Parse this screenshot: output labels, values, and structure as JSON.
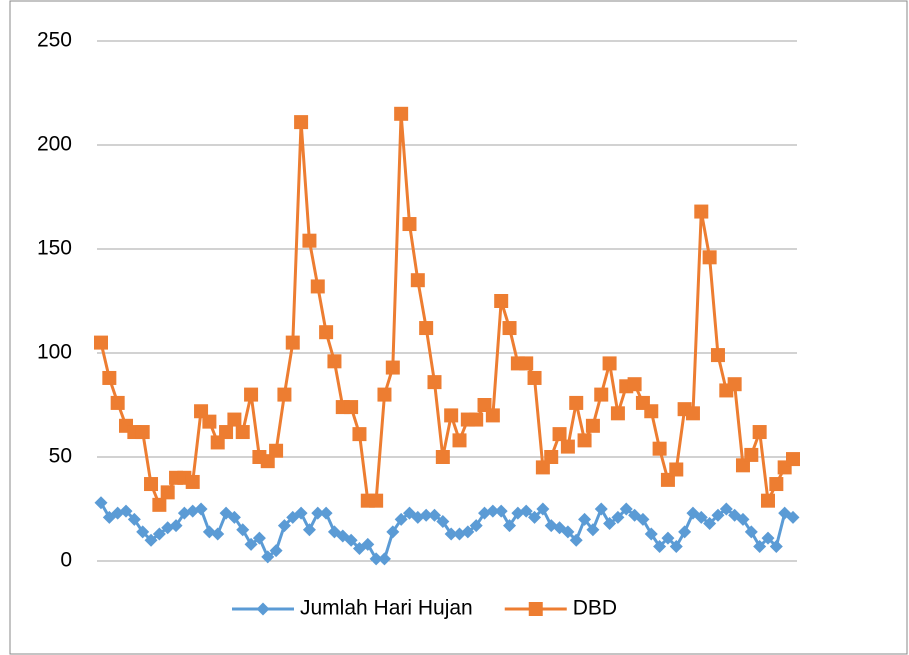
{
  "chart_data": {
    "type": "line",
    "series": [
      {
        "name": "Jumlah Hari Hujan",
        "color": "#5b9bd5",
        "marker": "diamond",
        "values": [
          28,
          21,
          23,
          24,
          20,
          14,
          10,
          13,
          16,
          17,
          23,
          24,
          25,
          14,
          13,
          23,
          21,
          15,
          8,
          11,
          2,
          5,
          17,
          21,
          23,
          15,
          23,
          23,
          14,
          12,
          10,
          6,
          8,
          1,
          1,
          14,
          20,
          23,
          21,
          22,
          22,
          19,
          13,
          13,
          14,
          17,
          23,
          24,
          24,
          17,
          23,
          24,
          21,
          25,
          17,
          16,
          14,
          10,
          20,
          15,
          25,
          18,
          21,
          25,
          22,
          20,
          13,
          7,
          11,
          7,
          14,
          23,
          21,
          18,
          22,
          25,
          22,
          20,
          14,
          7,
          11,
          7,
          23,
          21
        ]
      },
      {
        "name": "DBD",
        "color": "#ed7d31",
        "marker": "square",
        "values": [
          105,
          88,
          76,
          65,
          62,
          62,
          37,
          27,
          33,
          40,
          40,
          38,
          72,
          67,
          57,
          62,
          68,
          62,
          80,
          50,
          48,
          53,
          80,
          105,
          211,
          154,
          132,
          110,
          96,
          74,
          74,
          61,
          29,
          29,
          80,
          93,
          215,
          162,
          135,
          112,
          86,
          50,
          70,
          58,
          68,
          68,
          75,
          70,
          125,
          112,
          95,
          95,
          88,
          45,
          50,
          61,
          55,
          76,
          58,
          65,
          80,
          95,
          71,
          84,
          85,
          76,
          72,
          54,
          39,
          44,
          73,
          71,
          168,
          146,
          99,
          82,
          85,
          46,
          51,
          62,
          29,
          37,
          45,
          49
        ]
      }
    ],
    "ylim": [
      0,
      250
    ],
    "yticks": [
      0,
      50,
      100,
      150,
      200,
      250
    ],
    "grid": true,
    "legend": "bottom"
  }
}
